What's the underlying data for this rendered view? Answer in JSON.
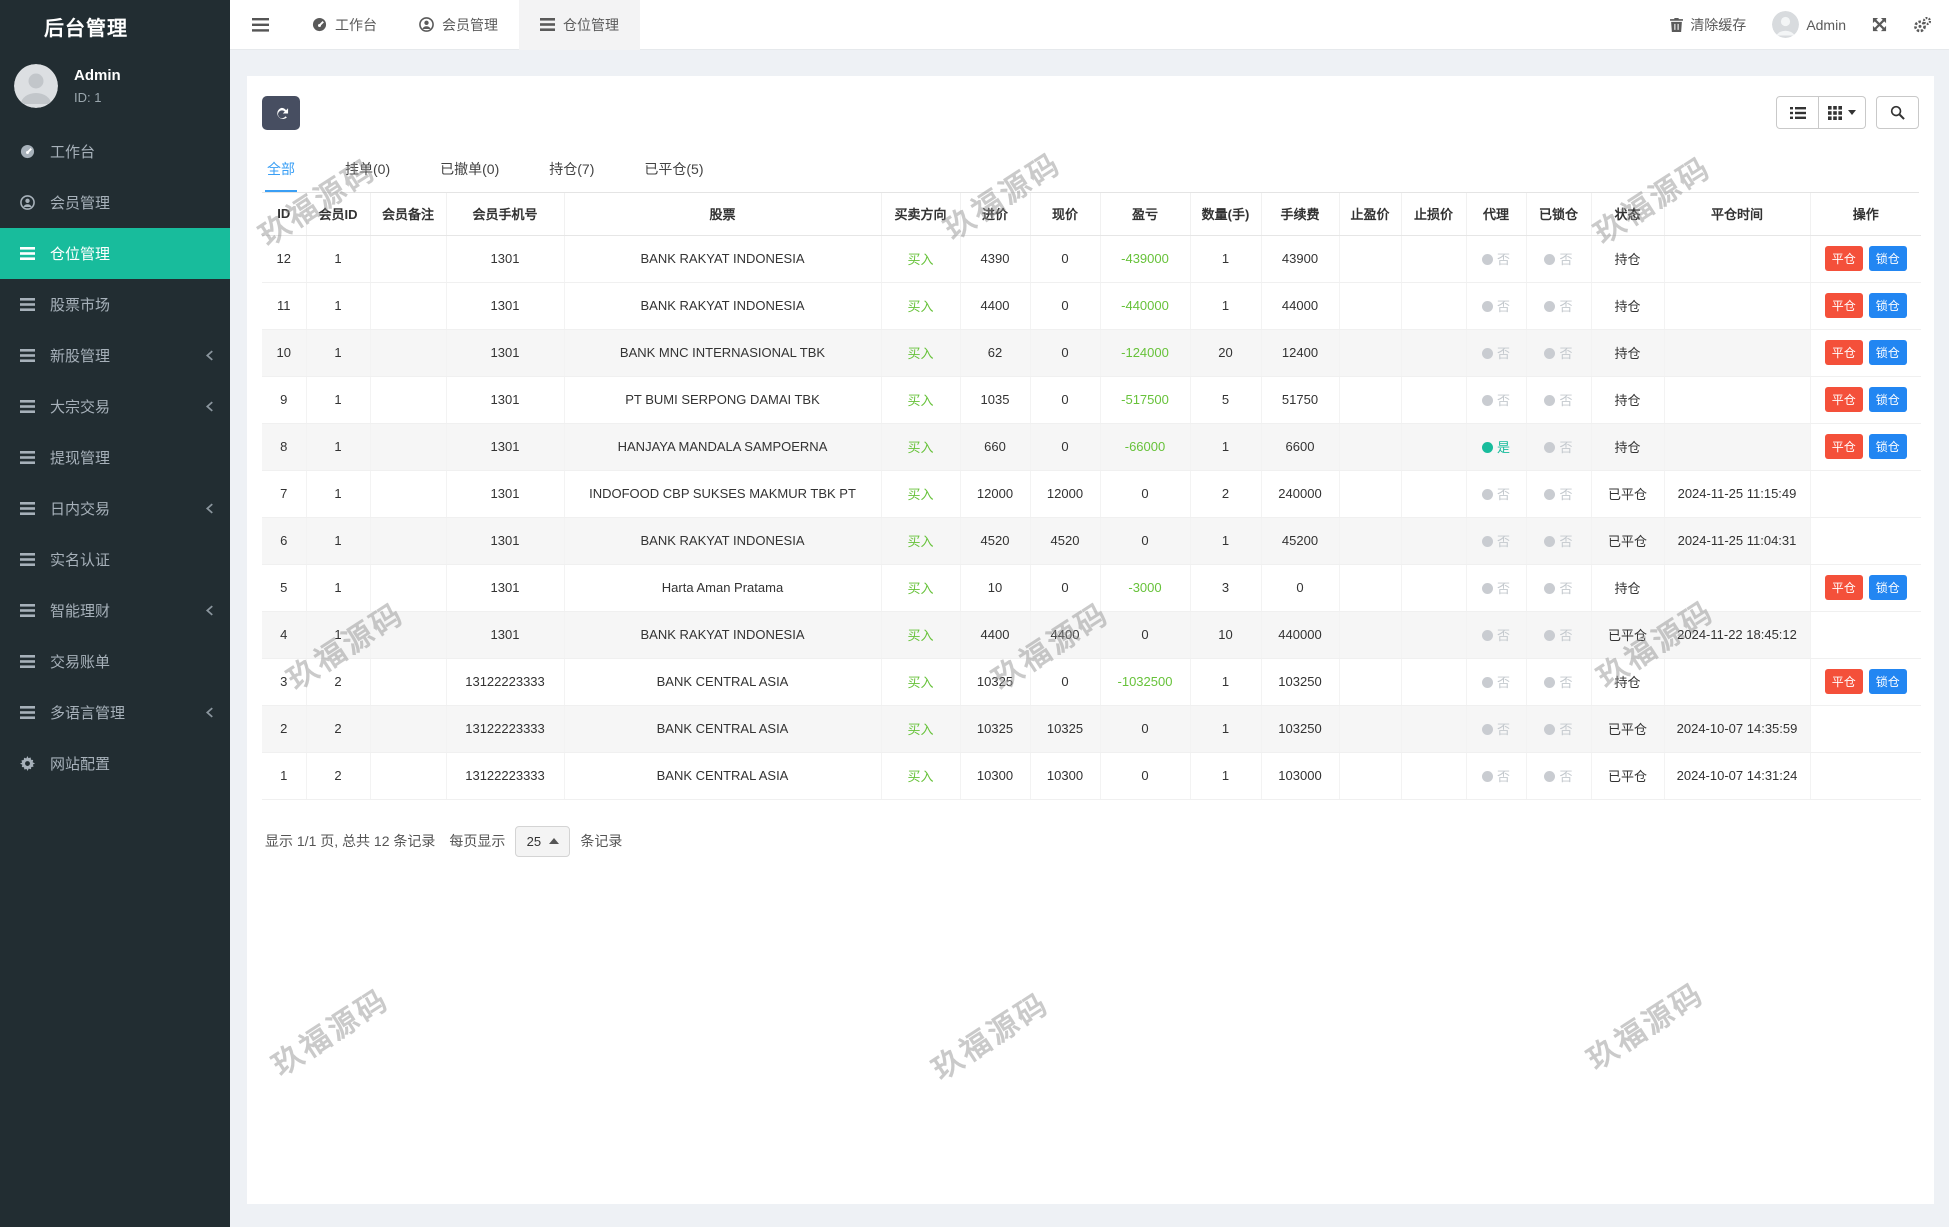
{
  "app": {
    "title": "后台管理"
  },
  "user": {
    "name": "Admin",
    "id_label": "ID: 1"
  },
  "topbar": {
    "tabs": [
      {
        "label": "工作台",
        "icon": "tachometer",
        "active": false
      },
      {
        "label": "会员管理",
        "icon": "user",
        "active": false
      },
      {
        "label": "仓位管理",
        "icon": "bars",
        "active": true
      }
    ],
    "clear_cache": "清除缓存",
    "admin": "Admin"
  },
  "sidebar": {
    "items": [
      {
        "label": "工作台",
        "icon": "tachometer",
        "active": false,
        "arrow": false
      },
      {
        "label": "会员管理",
        "icon": "user",
        "active": false,
        "arrow": false
      },
      {
        "label": "仓位管理",
        "icon": "bars",
        "active": true,
        "arrow": false
      },
      {
        "label": "股票市场",
        "icon": "bars",
        "active": false,
        "arrow": false
      },
      {
        "label": "新股管理",
        "icon": "bars",
        "active": false,
        "arrow": true
      },
      {
        "label": "大宗交易",
        "icon": "bars",
        "active": false,
        "arrow": true
      },
      {
        "label": "提现管理",
        "icon": "bars",
        "active": false,
        "arrow": false
      },
      {
        "label": "日内交易",
        "icon": "bars",
        "active": false,
        "arrow": true
      },
      {
        "label": "实名认证",
        "icon": "bars",
        "active": false,
        "arrow": false
      },
      {
        "label": "智能理财",
        "icon": "bars",
        "active": false,
        "arrow": true
      },
      {
        "label": "交易账单",
        "icon": "bars",
        "active": false,
        "arrow": false
      },
      {
        "label": "多语言管理",
        "icon": "bars",
        "active": false,
        "arrow": true
      },
      {
        "label": "网站配置",
        "icon": "gear",
        "active": false,
        "arrow": false
      }
    ]
  },
  "filter_tabs": [
    {
      "label": "全部",
      "active": true
    },
    {
      "label": "挂单(0)",
      "active": false
    },
    {
      "label": "已撤单(0)",
      "active": false
    },
    {
      "label": "持仓(7)",
      "active": false
    },
    {
      "label": "已平仓(5)",
      "active": false
    }
  ],
  "table": {
    "headers": [
      "ID",
      "会员ID",
      "会员备注",
      "会员手机号",
      "股票",
      "买卖方向",
      "进价",
      "现价",
      "盈亏",
      "数量(手)",
      "手续费",
      "止盈价",
      "止损价",
      "代理",
      "已锁仓",
      "状态",
      "平仓时间",
      "操作"
    ],
    "rows": [
      {
        "id": "12",
        "member_id": "1",
        "remark": "",
        "phone": "1301",
        "stock": "BANK RAKYAT INDONESIA",
        "direction": "买入",
        "entry": "4390",
        "current": "0",
        "pl": "-439000",
        "qty": "1",
        "fee": "43900",
        "tp": "",
        "sl": "",
        "agent_yes": false,
        "locked_yes": false,
        "status": "持仓",
        "close_time": "",
        "has_actions": true
      },
      {
        "id": "11",
        "member_id": "1",
        "remark": "",
        "phone": "1301",
        "stock": "BANK RAKYAT INDONESIA",
        "direction": "买入",
        "entry": "4400",
        "current": "0",
        "pl": "-440000",
        "qty": "1",
        "fee": "44000",
        "tp": "",
        "sl": "",
        "agent_yes": false,
        "locked_yes": false,
        "status": "持仓",
        "close_time": "",
        "has_actions": true
      },
      {
        "id": "10",
        "member_id": "1",
        "remark": "",
        "phone": "1301",
        "stock": "BANK MNC INTERNASIONAL TBK",
        "direction": "买入",
        "entry": "62",
        "current": "0",
        "pl": "-124000",
        "qty": "20",
        "fee": "12400",
        "tp": "",
        "sl": "",
        "agent_yes": false,
        "locked_yes": false,
        "status": "持仓",
        "close_time": "",
        "has_actions": true
      },
      {
        "id": "9",
        "member_id": "1",
        "remark": "",
        "phone": "1301",
        "stock": "PT BUMI SERPONG DAMAI TBK",
        "direction": "买入",
        "entry": "1035",
        "current": "0",
        "pl": "-517500",
        "qty": "5",
        "fee": "51750",
        "tp": "",
        "sl": "",
        "agent_yes": false,
        "locked_yes": false,
        "status": "持仓",
        "close_time": "",
        "has_actions": true
      },
      {
        "id": "8",
        "member_id": "1",
        "remark": "",
        "phone": "1301",
        "stock": "HANJAYA MANDALA SAMPOERNA",
        "direction": "买入",
        "entry": "660",
        "current": "0",
        "pl": "-66000",
        "qty": "1",
        "fee": "6600",
        "tp": "",
        "sl": "",
        "agent_yes": true,
        "locked_yes": false,
        "status": "持仓",
        "close_time": "",
        "has_actions": true
      },
      {
        "id": "7",
        "member_id": "1",
        "remark": "",
        "phone": "1301",
        "stock": "INDOFOOD CBP SUKSES MAKMUR TBK PT",
        "direction": "买入",
        "entry": "12000",
        "current": "12000",
        "pl": "0",
        "qty": "2",
        "fee": "240000",
        "tp": "",
        "sl": "",
        "agent_yes": false,
        "locked_yes": false,
        "status": "已平仓",
        "close_time": "2024-11-25 11:15:49",
        "has_actions": false
      },
      {
        "id": "6",
        "member_id": "1",
        "remark": "",
        "phone": "1301",
        "stock": "BANK RAKYAT INDONESIA",
        "direction": "买入",
        "entry": "4520",
        "current": "4520",
        "pl": "0",
        "qty": "1",
        "fee": "45200",
        "tp": "",
        "sl": "",
        "agent_yes": false,
        "locked_yes": false,
        "status": "已平仓",
        "close_time": "2024-11-25 11:04:31",
        "has_actions": false
      },
      {
        "id": "5",
        "member_id": "1",
        "remark": "",
        "phone": "1301",
        "stock": "Harta Aman Pratama",
        "direction": "买入",
        "entry": "10",
        "current": "0",
        "pl": "-3000",
        "qty": "3",
        "fee": "0",
        "tp": "",
        "sl": "",
        "agent_yes": false,
        "locked_yes": false,
        "status": "持仓",
        "close_time": "",
        "has_actions": true
      },
      {
        "id": "4",
        "member_id": "1",
        "remark": "",
        "phone": "1301",
        "stock": "BANK RAKYAT INDONESIA",
        "direction": "买入",
        "entry": "4400",
        "current": "4400",
        "pl": "0",
        "qty": "10",
        "fee": "440000",
        "tp": "",
        "sl": "",
        "agent_yes": false,
        "locked_yes": false,
        "status": "已平仓",
        "close_time": "2024-11-22 18:45:12",
        "has_actions": false
      },
      {
        "id": "3",
        "member_id": "2",
        "remark": "",
        "phone": "13122223333",
        "stock": "BANK CENTRAL ASIA",
        "direction": "买入",
        "entry": "10325",
        "current": "0",
        "pl": "-1032500",
        "qty": "1",
        "fee": "103250",
        "tp": "",
        "sl": "",
        "agent_yes": false,
        "locked_yes": false,
        "status": "持仓",
        "close_time": "",
        "has_actions": true
      },
      {
        "id": "2",
        "member_id": "2",
        "remark": "",
        "phone": "13122223333",
        "stock": "BANK CENTRAL ASIA",
        "direction": "买入",
        "entry": "10325",
        "current": "10325",
        "pl": "0",
        "qty": "1",
        "fee": "103250",
        "tp": "",
        "sl": "",
        "agent_yes": false,
        "locked_yes": false,
        "status": "已平仓",
        "close_time": "2024-10-07 14:35:59",
        "has_actions": false
      },
      {
        "id": "1",
        "member_id": "2",
        "remark": "",
        "phone": "13122223333",
        "stock": "BANK CENTRAL ASIA",
        "direction": "买入",
        "entry": "10300",
        "current": "10300",
        "pl": "0",
        "qty": "1",
        "fee": "103000",
        "tp": "",
        "sl": "",
        "agent_yes": false,
        "locked_yes": false,
        "status": "已平仓",
        "close_time": "2024-10-07 14:31:24",
        "has_actions": false
      }
    ]
  },
  "actions": {
    "close_position": "平仓",
    "lock_position": "锁仓"
  },
  "toggle": {
    "yes": "是",
    "no": "否"
  },
  "pagination": {
    "summary": "显示 1/1 页, 总共 12 条记录",
    "per_page_label": "每页显示",
    "page_size": "25",
    "suffix": "条记录"
  },
  "watermark": {
    "text": "玖福源码"
  },
  "colors": {
    "sidebar-bg": "#222d32",
    "sidebar-text": "#a7b1ba",
    "teal": "#18bc9c",
    "green": "#67c23a",
    "red": "#f4503a",
    "blue": "#2286f2",
    "tabblue": "#3a9ff5",
    "dark-btn": "#474e61"
  }
}
